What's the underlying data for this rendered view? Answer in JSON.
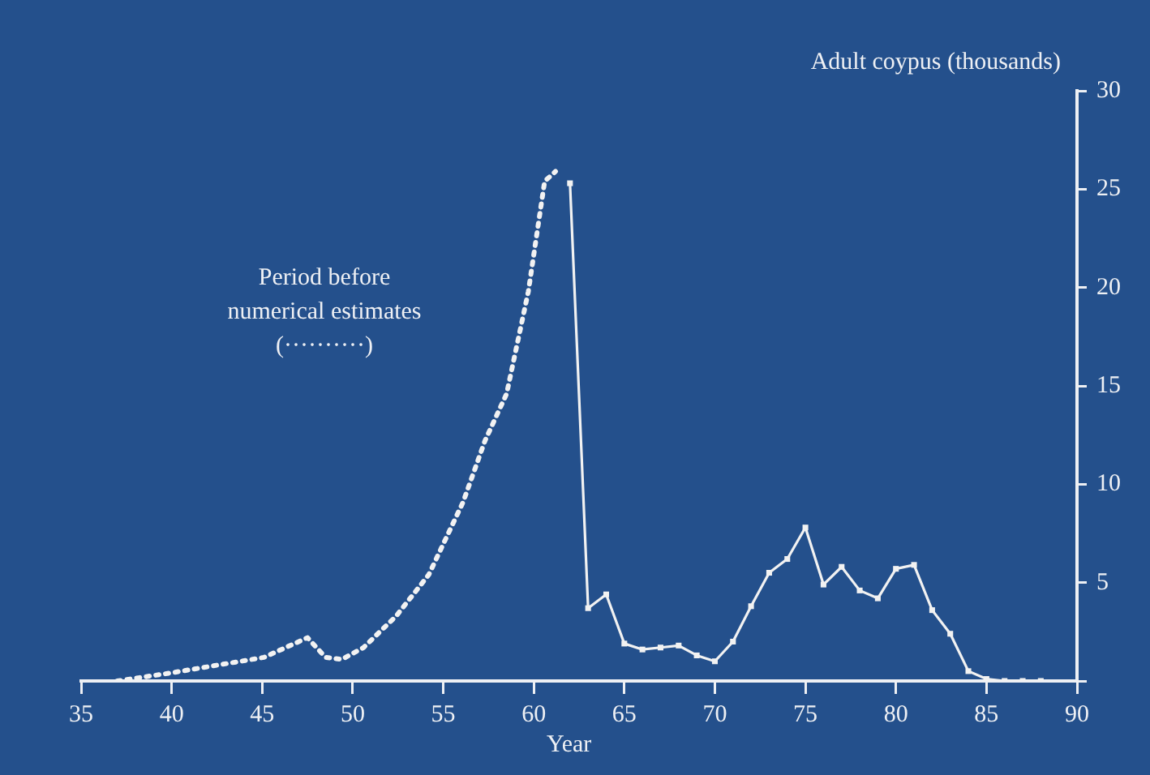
{
  "chart_data": {
    "type": "line",
    "xlabel": "Year",
    "ylabel": "Adult coypus (thousands)",
    "xlim": [
      35,
      90
    ],
    "xticks": [
      35,
      40,
      45,
      50,
      55,
      60,
      65,
      70,
      75,
      80,
      85,
      90
    ],
    "ylim": [
      0,
      30
    ],
    "yticks": [
      {
        "value": 0,
        "label": null
      },
      5,
      10,
      15,
      20,
      25,
      30
    ],
    "annotations": [
      "Period before\nnumerical estimates\n(··········)"
    ],
    "series": [
      {
        "color": "#f2f2f2",
        "line_style": "dotted",
        "marker": "none",
        "x": [
          37,
          39.9,
          45.1,
          47.5,
          48.5,
          49.4,
          50.6,
          52.4,
          54.2,
          56.1,
          57.3,
          58.5,
          59.7,
          60.6,
          61.2
        ],
        "values": [
          0,
          0.4,
          1.2,
          2.2,
          1.2,
          1.1,
          1.7,
          3.3,
          5.4,
          9.1,
          12.2,
          14.6,
          19.8,
          25.4,
          25.9
        ]
      },
      {
        "color": "#f2f2f2",
        "line_style": "solid",
        "marker": "square",
        "x": [
          62,
          63,
          64,
          65,
          66,
          67,
          68,
          69,
          70,
          71,
          72,
          73,
          74,
          75,
          76,
          77,
          78,
          79,
          80,
          81,
          82,
          83,
          84,
          85,
          86,
          87,
          88
        ],
        "values": [
          25.3,
          3.7,
          4.4,
          1.9,
          1.6,
          1.7,
          1.8,
          1.3,
          1,
          2,
          3.8,
          5.5,
          6.2,
          7.8,
          4.9,
          5.8,
          4.6,
          4.2,
          5.7,
          5.9,
          3.6,
          2.4,
          0.5,
          0.1,
          0,
          0,
          0
        ]
      }
    ]
  }
}
